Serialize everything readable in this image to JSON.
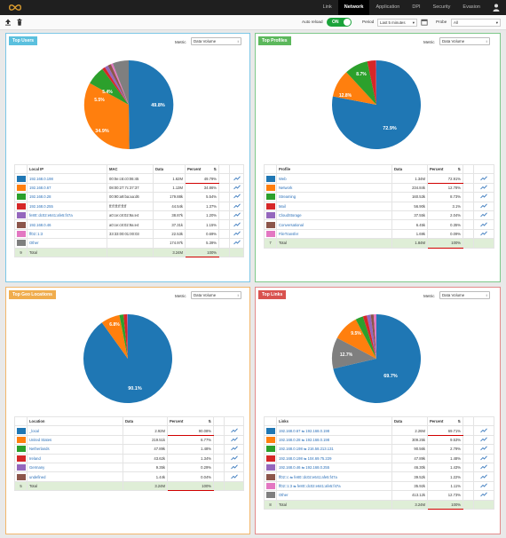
{
  "nav": {
    "items": [
      "Link",
      "Network",
      "Application",
      "DPI",
      "Security",
      "Evasion"
    ],
    "active": "Network"
  },
  "toolbar": {
    "auto_reload_label": "Auto reload",
    "toggle_label": "ON",
    "period_label": "Period",
    "period_value": "Last 5 minutes",
    "probe_label": "Probe",
    "probe_value": "All"
  },
  "colors": [
    "#1f77b4",
    "#ff7f0e",
    "#2ca02c",
    "#d62728",
    "#9467bd",
    "#8c564b",
    "#e377c2",
    "#7f7f7f"
  ],
  "panels": {
    "top_users": {
      "title": "Top Users",
      "metric_label": "Metric",
      "metric_value": "Data Volume",
      "headers": [
        "Local IP",
        "MAC",
        "Data",
        "Percent"
      ],
      "rows": [
        [
          "192.168.0.198",
          "00:0e:c6:c0:06:45",
          "1.62M",
          "49.79%"
        ],
        [
          "192.168.0.67",
          "08:00:27:7c:37:37",
          "1.13M",
          "34.86%"
        ],
        [
          "192.168.0.28",
          "00:90:a9:ba:aa:d6",
          "179.88k",
          "5.54%"
        ],
        [
          "192.168.0.255",
          "ff:ff:ff:ff:ff:ff",
          "44.54k",
          "1.37%"
        ],
        [
          "fe80::dc02:e641:afe5:f47a",
          "a0:ce:c8:02:9a:e4",
          "38.87k",
          "1.20%"
        ],
        [
          "192.168.0.46",
          "a0:ce:c8:02:9a:e4",
          "37.31k",
          "1.15%"
        ],
        [
          "ff02::1:3",
          "33:33:00:01:00:03",
          "22.53k",
          "0.69%"
        ],
        [
          "Other",
          "",
          "174.97k",
          "5.39%"
        ]
      ],
      "total": [
        "9",
        "Total",
        "",
        "3.24M",
        "100%"
      ],
      "pie_labels": [
        "49.8%",
        "34.9%",
        "5.5%",
        "5.4%"
      ]
    },
    "top_profiles": {
      "title": "Top Profiles",
      "metric_label": "Metric",
      "metric_value": "Data Volume",
      "headers": [
        "Profile",
        "Data",
        "Percent"
      ],
      "rows": [
        [
          "Web",
          "1.34M",
          "72.91%"
        ],
        [
          "Network",
          "234.84k",
          "12.78%"
        ],
        [
          "Streaming",
          "160.53k",
          "8.73%"
        ],
        [
          "Mail",
          "56.90k",
          "3.1%"
        ],
        [
          "CloudStorage",
          "37.55k",
          "2.04%"
        ],
        [
          "Conversational",
          "6.45k",
          "0.35%"
        ],
        [
          "FileTransfer",
          "1.69k",
          "0.09%"
        ]
      ],
      "total": [
        "7",
        "Total",
        "1.84M",
        "100%"
      ],
      "pie_labels": [
        "72.9%",
        "12.8%",
        "8.7%"
      ]
    },
    "top_geo": {
      "title": "Top Geo Locations",
      "metric_label": "Metric",
      "metric_value": "Data Volume",
      "headers": [
        "Location",
        "Data",
        "Percent"
      ],
      "rows": [
        [
          "_local",
          "2.92M",
          "90.08%"
        ],
        [
          "United States",
          "219.51k",
          "6.77%"
        ],
        [
          "Netherlands",
          "47.89k",
          "1.48%"
        ],
        [
          "Ireland",
          "43.62k",
          "1.34%"
        ],
        [
          "Germany",
          "9.35k",
          "0.29%"
        ],
        [
          "undefined",
          "1.44k",
          "0.04%"
        ]
      ],
      "total": [
        "5",
        "Total",
        "3.24M",
        "100%"
      ],
      "pie_labels": [
        "90.1%",
        "6.8%"
      ]
    },
    "top_links": {
      "title": "Top Links",
      "metric_label": "Metric",
      "metric_value": "Data Volume",
      "headers": [
        "Links",
        "Data",
        "Percent"
      ],
      "rows": [
        [
          "192.168.0.67 ⇆ 192.168.0.198",
          "2.26M",
          "69.71%"
        ],
        [
          "192.168.0.28 ⇆ 192.168.0.198",
          "309.25k",
          "9.53%"
        ],
        [
          "192.168.0.198 ⇆ 216.58.213.131",
          "90.56k",
          "2.79%"
        ],
        [
          "192.168.0.198 ⇆ 104.69.75.229",
          "47.89k",
          "1.48%"
        ],
        [
          "192.168.0.46 ⇆ 192.168.0.255",
          "46.30k",
          "1.43%"
        ],
        [
          "ff02::c ⇆ fe80::dc02:e641:afe5:f47a",
          "39.52k",
          "1.22%"
        ],
        [
          "ff02::1:3 ⇆ fe80::dc02:e641:afe5:f47a",
          "35.92k",
          "1.11%"
        ],
        [
          "Other",
          "413.12k",
          "12.73%"
        ]
      ],
      "total": [
        "8",
        "Total",
        "3.24M",
        "100%"
      ],
      "pie_labels": [
        "69.7%",
        "12.7%",
        "9.5%"
      ]
    }
  }
}
